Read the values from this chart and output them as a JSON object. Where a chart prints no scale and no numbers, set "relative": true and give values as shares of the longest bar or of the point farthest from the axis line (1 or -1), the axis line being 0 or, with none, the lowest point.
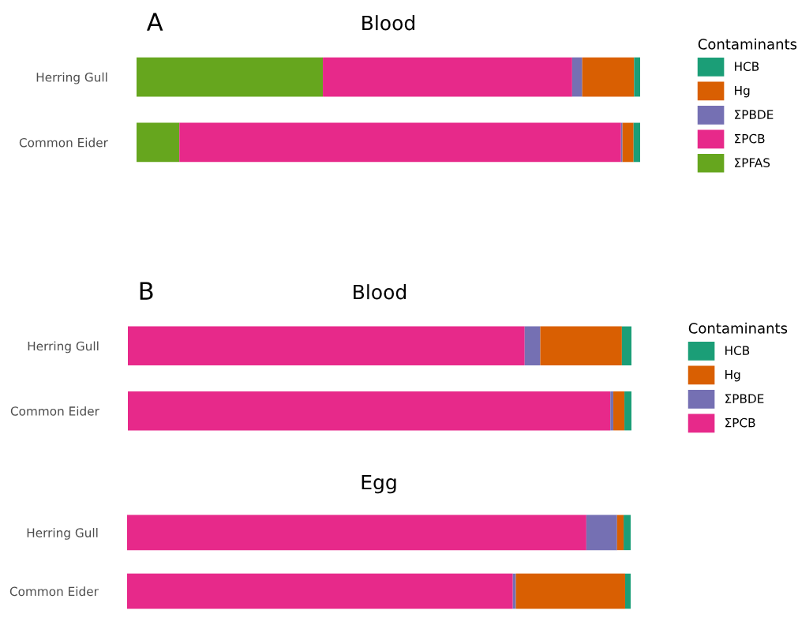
{
  "chart_data": [
    {
      "type": "bar",
      "title": "Blood",
      "orientation": "horizontal",
      "stacked": true,
      "relative": true,
      "tick_labels": "y",
      "grid": false,
      "legend": "right",
      "legend_title": "Contaminants",
      "annotations": [
        "A"
      ],
      "categories": [
        "Herring Gull",
        "Common Eider"
      ],
      "series": [
        {
          "name": "ΣPFAS",
          "color": "#66a61e",
          "values": [
            0.37,
            0.085
          ]
        },
        {
          "name": "ΣPCB",
          "color": "#e7298a",
          "values": [
            0.495,
            0.877
          ]
        },
        {
          "name": "ΣPBDE",
          "color": "#7570b3",
          "values": [
            0.02,
            0.003
          ]
        },
        {
          "name": "Hg",
          "color": "#d95f02",
          "values": [
            0.103,
            0.022
          ]
        },
        {
          "name": "HCB",
          "color": "#1b9e77",
          "values": [
            0.012,
            0.013
          ]
        }
      ]
    },
    {
      "type": "bar",
      "title": "Blood",
      "orientation": "horizontal",
      "stacked": true,
      "relative": true,
      "tick_labels": "y",
      "grid": false,
      "legend": "right",
      "legend_title": "Contaminants",
      "annotations": [
        "B"
      ],
      "categories": [
        "Herring Gull",
        "Common Eider"
      ],
      "series": [
        {
          "name": "ΣPCB",
          "color": "#e7298a",
          "values": [
            0.788,
            0.958
          ]
        },
        {
          "name": "ΣPBDE",
          "color": "#7570b3",
          "values": [
            0.031,
            0.006
          ]
        },
        {
          "name": "Hg",
          "color": "#d95f02",
          "values": [
            0.162,
            0.022
          ]
        },
        {
          "name": "HCB",
          "color": "#1b9e77",
          "values": [
            0.019,
            0.014
          ]
        }
      ]
    },
    {
      "type": "bar",
      "title": "Egg",
      "orientation": "horizontal",
      "stacked": true,
      "relative": true,
      "tick_labels": "y",
      "grid": false,
      "categories": [
        "Herring Gull",
        "Common Eider"
      ],
      "series": [
        {
          "color": "#e7298a",
          "values": [
            0.912,
            0.766
          ]
        },
        {
          "color": "#7570b3",
          "values": [
            0.061,
            0.006
          ]
        },
        {
          "color": "#d95f02",
          "values": [
            0.013,
            0.217
          ]
        },
        {
          "color": "#1b9e77",
          "values": [
            0.014,
            0.011
          ]
        }
      ]
    }
  ]
}
